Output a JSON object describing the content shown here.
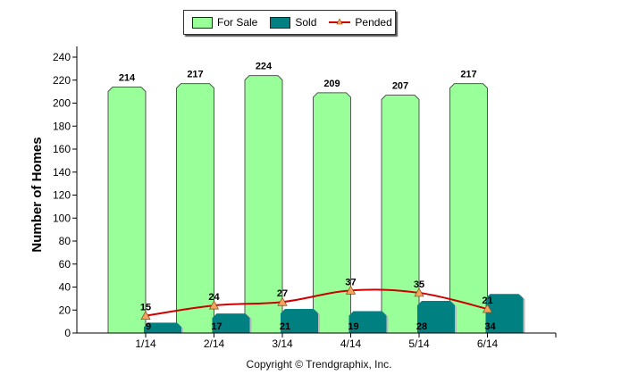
{
  "chart_data": {
    "type": "bar",
    "title": "",
    "xlabel": "",
    "ylabel": "Number of Homes",
    "ylim": [
      0,
      240
    ],
    "yticks": [
      0,
      20,
      40,
      60,
      80,
      100,
      120,
      140,
      160,
      180,
      200,
      220,
      240
    ],
    "grid": false,
    "legend_position": "top-center",
    "categories": [
      "1/14",
      "2/14",
      "3/14",
      "4/14",
      "5/14",
      "6/14"
    ],
    "series": [
      {
        "name": "For Sale",
        "type": "bar",
        "color": "#99FF99",
        "values": [
          214,
          217,
          224,
          209,
          207,
          217
        ]
      },
      {
        "name": "Sold",
        "type": "bar",
        "color": "#008080",
        "values": [
          9,
          17,
          21,
          19,
          28,
          34
        ]
      },
      {
        "name": "Pended",
        "type": "line",
        "color": "#CC0000",
        "marker_color": "#F4A460",
        "values": [
          15,
          24,
          27,
          37,
          35,
          21
        ]
      }
    ]
  },
  "copyright": "Copyright © Trendgraphix, Inc."
}
